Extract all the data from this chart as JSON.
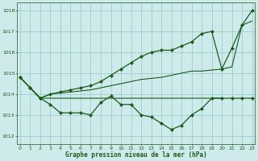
{
  "title": "Graphe pression niveau de la mer (hPa)",
  "bg_color": "#ceeaea",
  "grid_color": "#9ccece",
  "line_color": "#1a5c1a",
  "xlim": [
    -0.3,
    23.3
  ],
  "ylim": [
    1011.6,
    1018.4
  ],
  "yticks": [
    1012,
    1013,
    1014,
    1015,
    1016,
    1017,
    1018
  ],
  "xticks": [
    0,
    1,
    2,
    3,
    4,
    5,
    6,
    7,
    8,
    9,
    10,
    11,
    12,
    13,
    14,
    15,
    16,
    17,
    18,
    19,
    20,
    21,
    22,
    23
  ],
  "series": [
    {
      "x": [
        0,
        1,
        2,
        3,
        4,
        5,
        6,
        7,
        8,
        9,
        10,
        11,
        12,
        13,
        14,
        15,
        16,
        17,
        18,
        19,
        20,
        21,
        22,
        23
      ],
      "y": [
        1014.8,
        1014.3,
        1013.8,
        1013.5,
        1013.1,
        1013.1,
        1013.1,
        1013.0,
        1013.6,
        1013.9,
        1013.5,
        1013.5,
        1013.0,
        1012.9,
        1012.6,
        1012.3,
        1012.5,
        1013.0,
        1013.3,
        1013.8,
        1013.8,
        1013.8,
        1013.8,
        1013.8
      ],
      "has_markers": true,
      "linewidth": 0.9
    },
    {
      "x": [
        0,
        1,
        2,
        3,
        4,
        5,
        6,
        7,
        8,
        9,
        10,
        11,
        12,
        13,
        14,
        15,
        16,
        17,
        18,
        19,
        20
      ],
      "y": [
        1014.8,
        1014.3,
        1013.8,
        1013.8,
        1013.8,
        1013.8,
        1013.8,
        1013.8,
        1013.8,
        1013.8,
        1013.8,
        1013.8,
        1013.8,
        1013.8,
        1013.8,
        1013.8,
        1013.8,
        1013.8,
        1013.8,
        1013.8,
        1013.8
      ],
      "has_markers": false,
      "linewidth": 0.8
    },
    {
      "x": [
        0,
        1,
        2,
        3,
        4,
        5,
        6,
        7,
        8,
        9,
        10,
        11,
        12,
        13,
        14,
        15,
        16,
        17,
        18,
        19,
        20,
        21,
        22,
        23
      ],
      "y": [
        1014.8,
        1014.3,
        1013.8,
        1014.0,
        1014.05,
        1014.1,
        1014.15,
        1014.2,
        1014.3,
        1014.4,
        1014.5,
        1014.6,
        1014.7,
        1014.75,
        1014.8,
        1014.9,
        1015.0,
        1015.1,
        1015.1,
        1015.15,
        1015.2,
        1015.3,
        1017.3,
        1017.5
      ],
      "has_markers": false,
      "linewidth": 0.8
    },
    {
      "x": [
        0,
        1,
        2,
        3,
        4,
        5,
        6,
        7,
        8,
        9,
        10,
        11,
        12,
        13,
        14,
        15,
        16,
        17,
        18,
        19,
        20,
        21,
        22,
        23
      ],
      "y": [
        1014.8,
        1014.3,
        1013.8,
        1014.0,
        1014.1,
        1014.2,
        1014.3,
        1014.4,
        1014.6,
        1014.9,
        1015.2,
        1015.5,
        1015.8,
        1016.0,
        1016.1,
        1016.1,
        1016.3,
        1016.5,
        1016.9,
        1017.0,
        1015.2,
        1016.2,
        1017.3,
        1018.0
      ],
      "has_markers": true,
      "linewidth": 0.9
    }
  ]
}
